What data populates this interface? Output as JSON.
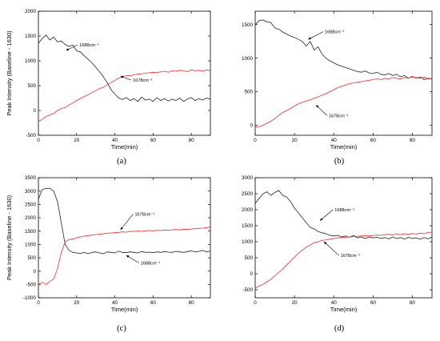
{
  "colors": {
    "black_series": "#222222",
    "red_series": "#ee2b2b"
  },
  "chart_data": [
    {
      "type": "line",
      "panel_label": "(a)",
      "xlabel": "Time(min)",
      "ylabel": "Peak Intensity (Baseline - 1630)",
      "xlim": [
        0,
        90
      ],
      "ylim": [
        -500,
        2000
      ],
      "xticks": [
        0,
        20,
        40,
        60,
        80
      ],
      "yticks": [
        -500,
        0,
        500,
        1000,
        1500,
        2000
      ],
      "grid": false,
      "series": [
        {
          "name": "1688cm⁻¹",
          "color": "black",
          "x": [
            0,
            2,
            4,
            6,
            8,
            10,
            12,
            14,
            16,
            18,
            20,
            22,
            24,
            26,
            28,
            30,
            32,
            34,
            36,
            38,
            40,
            42,
            44,
            46,
            48,
            50,
            52,
            54,
            56,
            58,
            60,
            62,
            64,
            66,
            68,
            70,
            72,
            74,
            76,
            78,
            80,
            82,
            84,
            86,
            88,
            90
          ],
          "y": [
            1350,
            1450,
            1520,
            1420,
            1480,
            1380,
            1400,
            1330,
            1290,
            1320,
            1200,
            1180,
            1100,
            1030,
            960,
            870,
            780,
            680,
            560,
            420,
            330,
            250,
            220,
            260,
            200,
            240,
            180,
            270,
            210,
            230,
            180,
            260,
            200,
            240,
            190,
            230,
            200,
            250,
            180,
            230,
            260,
            200,
            240,
            210,
            250,
            230
          ]
        },
        {
          "name": "1678cm⁻¹",
          "color": "red",
          "x": [
            0,
            2,
            4,
            6,
            8,
            10,
            12,
            14,
            16,
            18,
            20,
            22,
            24,
            26,
            28,
            30,
            32,
            34,
            36,
            38,
            40,
            42,
            44,
            46,
            48,
            50,
            52,
            54,
            56,
            58,
            60,
            62,
            64,
            66,
            68,
            70,
            72,
            74,
            76,
            78,
            80,
            82,
            84,
            86,
            88,
            90
          ],
          "y": [
            -220,
            -180,
            -120,
            -90,
            -60,
            0,
            40,
            60,
            110,
            150,
            200,
            240,
            280,
            320,
            360,
            400,
            440,
            470,
            520,
            560,
            610,
            650,
            680,
            700,
            700,
            720,
            730,
            740,
            750,
            760,
            770,
            760,
            780,
            790,
            770,
            800,
            790,
            810,
            800,
            780,
            820,
            800,
            810,
            790,
            820,
            800
          ]
        }
      ],
      "annotations": [
        {
          "text": "1688cm⁻¹",
          "at": [
            21,
            1290
          ],
          "arrow_to": [
            14.5,
            1210
          ]
        },
        {
          "text": "1678cm⁻¹",
          "at": [
            49,
            580
          ],
          "arrow_to": [
            43,
            690
          ]
        }
      ]
    },
    {
      "type": "line",
      "panel_label": "(b)",
      "xlabel": "Time(min)",
      "ylabel": "",
      "xlim": [
        0,
        90
      ],
      "ylim": [
        -150,
        1700
      ],
      "xticks": [
        0,
        20,
        40,
        60,
        80
      ],
      "yticks": [
        0,
        500,
        1000,
        1500
      ],
      "grid": false,
      "series": [
        {
          "name": "1688cm⁻¹",
          "color": "black",
          "x": [
            0,
            2,
            4,
            6,
            8,
            10,
            12,
            14,
            16,
            18,
            20,
            22,
            24,
            26,
            28,
            30,
            32,
            34,
            36,
            38,
            40,
            42,
            44,
            46,
            48,
            50,
            52,
            54,
            56,
            58,
            60,
            62,
            64,
            66,
            68,
            70,
            72,
            74,
            76,
            78,
            80,
            82,
            84,
            86,
            88,
            90
          ],
          "y": [
            1500,
            1560,
            1570,
            1540,
            1530,
            1450,
            1430,
            1390,
            1360,
            1330,
            1310,
            1280,
            1250,
            1180,
            1250,
            1120,
            1170,
            1060,
            1000,
            960,
            930,
            900,
            880,
            860,
            840,
            820,
            800,
            790,
            810,
            780,
            770,
            790,
            760,
            750,
            770,
            740,
            760,
            720,
            740,
            700,
            730,
            700,
            720,
            680,
            700,
            690
          ]
        },
        {
          "name": "1678cm⁻¹",
          "color": "red",
          "x": [
            0,
            2,
            4,
            6,
            8,
            10,
            12,
            14,
            16,
            18,
            20,
            22,
            24,
            26,
            28,
            30,
            32,
            34,
            36,
            38,
            40,
            42,
            44,
            46,
            48,
            50,
            52,
            54,
            56,
            58,
            60,
            62,
            64,
            66,
            68,
            70,
            72,
            74,
            76,
            78,
            80,
            82,
            84,
            86,
            88,
            90
          ],
          "y": [
            -30,
            -20,
            0,
            30,
            60,
            100,
            150,
            190,
            220,
            250,
            290,
            320,
            340,
            360,
            380,
            400,
            420,
            450,
            470,
            500,
            530,
            560,
            580,
            600,
            620,
            630,
            640,
            650,
            660,
            670,
            680,
            690,
            680,
            700,
            690,
            710,
            700,
            690,
            710,
            700,
            720,
            710,
            700,
            720,
            690,
            700
          ]
        }
      ],
      "annotations": [
        {
          "text": "1688cm⁻¹",
          "at": [
            35,
            1370
          ],
          "arrow_to": [
            27,
            1280
          ]
        },
        {
          "text": "1678cm⁻¹",
          "at": [
            37,
            120
          ],
          "arrow_to": [
            31,
            300
          ]
        }
      ]
    },
    {
      "type": "line",
      "panel_label": "(c)",
      "xlabel": "Time(min)",
      "ylabel": "Peak Intensity (Baseline - 1630)",
      "xlim": [
        0,
        90
      ],
      "ylim": [
        -1000,
        3500
      ],
      "xticks": [
        0,
        20,
        40,
        60,
        80
      ],
      "yticks": [
        -1000,
        -500,
        0,
        500,
        1000,
        1500,
        2000,
        2500,
        3000,
        3500
      ],
      "grid": false,
      "series": [
        {
          "name": "1688cm⁻¹",
          "color": "black",
          "x": [
            0,
            2,
            4,
            6,
            8,
            10,
            12,
            14,
            16,
            18,
            20,
            22,
            24,
            26,
            28,
            30,
            32,
            34,
            36,
            38,
            40,
            42,
            44,
            46,
            48,
            50,
            52,
            54,
            56,
            58,
            60,
            62,
            64,
            66,
            68,
            70,
            72,
            74,
            76,
            78,
            80,
            82,
            84,
            86,
            88,
            90
          ],
          "y": [
            2700,
            3050,
            3100,
            3100,
            3000,
            2600,
            1800,
            1000,
            780,
            700,
            680,
            660,
            700,
            650,
            700,
            720,
            680,
            650,
            720,
            700,
            680,
            750,
            700,
            690,
            720,
            700,
            680,
            730,
            700,
            710,
            690,
            720,
            700,
            730,
            710,
            700,
            740,
            720,
            700,
            730,
            760,
            720,
            740,
            780,
            720,
            750
          ]
        },
        {
          "name": "1678cm⁻¹",
          "color": "red",
          "x": [
            0,
            2,
            4,
            6,
            8,
            10,
            12,
            14,
            16,
            18,
            20,
            22,
            24,
            26,
            28,
            30,
            32,
            34,
            36,
            38,
            40,
            42,
            44,
            46,
            48,
            50,
            52,
            54,
            56,
            58,
            60,
            62,
            64,
            66,
            68,
            70,
            72,
            74,
            76,
            78,
            80,
            82,
            84,
            86,
            88,
            90
          ],
          "y": [
            -500,
            -420,
            -500,
            -380,
            -300,
            100,
            700,
            1100,
            1180,
            1200,
            1250,
            1280,
            1310,
            1330,
            1350,
            1370,
            1380,
            1400,
            1420,
            1430,
            1440,
            1450,
            1470,
            1460,
            1480,
            1490,
            1500,
            1490,
            1510,
            1520,
            1510,
            1530,
            1520,
            1540,
            1530,
            1550,
            1560,
            1540,
            1570,
            1560,
            1580,
            1590,
            1600,
            1610,
            1630,
            1650
          ]
        }
      ],
      "annotations": [
        {
          "text": "1678cm⁻¹",
          "at": [
            50,
            2080
          ],
          "arrow_to": [
            43,
            1550
          ]
        },
        {
          "text": "1688cm⁻¹",
          "at": [
            53,
            250
          ],
          "arrow_to": [
            46,
            590
          ]
        }
      ]
    },
    {
      "type": "line",
      "panel_label": "(d)",
      "xlabel": "Time(min)",
      "ylabel": "",
      "xlim": [
        0,
        90
      ],
      "ylim": [
        -750,
        3000
      ],
      "xticks": [
        0,
        20,
        40,
        60,
        80
      ],
      "yticks": [
        -500,
        0,
        500,
        1000,
        1500,
        2000,
        2500,
        3000
      ],
      "grid": false,
      "series": [
        {
          "name": "1688cm⁻¹",
          "color": "black",
          "x": [
            0,
            2,
            4,
            6,
            8,
            10,
            12,
            14,
            16,
            18,
            20,
            22,
            24,
            26,
            28,
            30,
            32,
            34,
            36,
            38,
            40,
            42,
            44,
            46,
            48,
            50,
            52,
            54,
            56,
            58,
            60,
            62,
            64,
            66,
            68,
            70,
            72,
            74,
            76,
            78,
            80,
            82,
            84,
            86,
            88,
            90
          ],
          "y": [
            2200,
            2350,
            2500,
            2560,
            2450,
            2540,
            2600,
            2450,
            2400,
            2250,
            2050,
            1900,
            1750,
            1600,
            1450,
            1400,
            1320,
            1280,
            1250,
            1200,
            1180,
            1200,
            1150,
            1180,
            1140,
            1200,
            1120,
            1150,
            1100,
            1150,
            1120,
            1140,
            1100,
            1130,
            1090,
            1150,
            1100,
            1130,
            1080,
            1140,
            1100,
            1120,
            1080,
            1130,
            1090,
            1150
          ]
        },
        {
          "name": "1678cm⁻¹",
          "color": "red",
          "x": [
            0,
            2,
            4,
            6,
            8,
            10,
            12,
            14,
            16,
            18,
            20,
            22,
            24,
            26,
            28,
            30,
            32,
            34,
            36,
            38,
            40,
            42,
            44,
            46,
            48,
            50,
            52,
            54,
            56,
            58,
            60,
            62,
            64,
            66,
            68,
            70,
            72,
            74,
            76,
            78,
            80,
            82,
            84,
            86,
            88,
            90
          ],
          "y": [
            -450,
            -380,
            -330,
            -250,
            -170,
            -60,
            50,
            150,
            280,
            400,
            520,
            640,
            740,
            830,
            900,
            970,
            1000,
            1040,
            1060,
            1080,
            1100,
            1120,
            1130,
            1140,
            1150,
            1160,
            1170,
            1180,
            1190,
            1180,
            1200,
            1210,
            1200,
            1220,
            1230,
            1210,
            1240,
            1220,
            1250,
            1230,
            1260,
            1240,
            1270,
            1250,
            1290,
            1300
          ]
        }
      ],
      "annotations": [
        {
          "text": "1688cm⁻¹",
          "at": [
            40,
            1950
          ],
          "arrow_to": [
            33,
            1660
          ]
        },
        {
          "text": "1678cm⁻¹",
          "at": [
            43,
            520
          ],
          "arrow_to": [
            35,
            1000
          ]
        }
      ]
    }
  ]
}
